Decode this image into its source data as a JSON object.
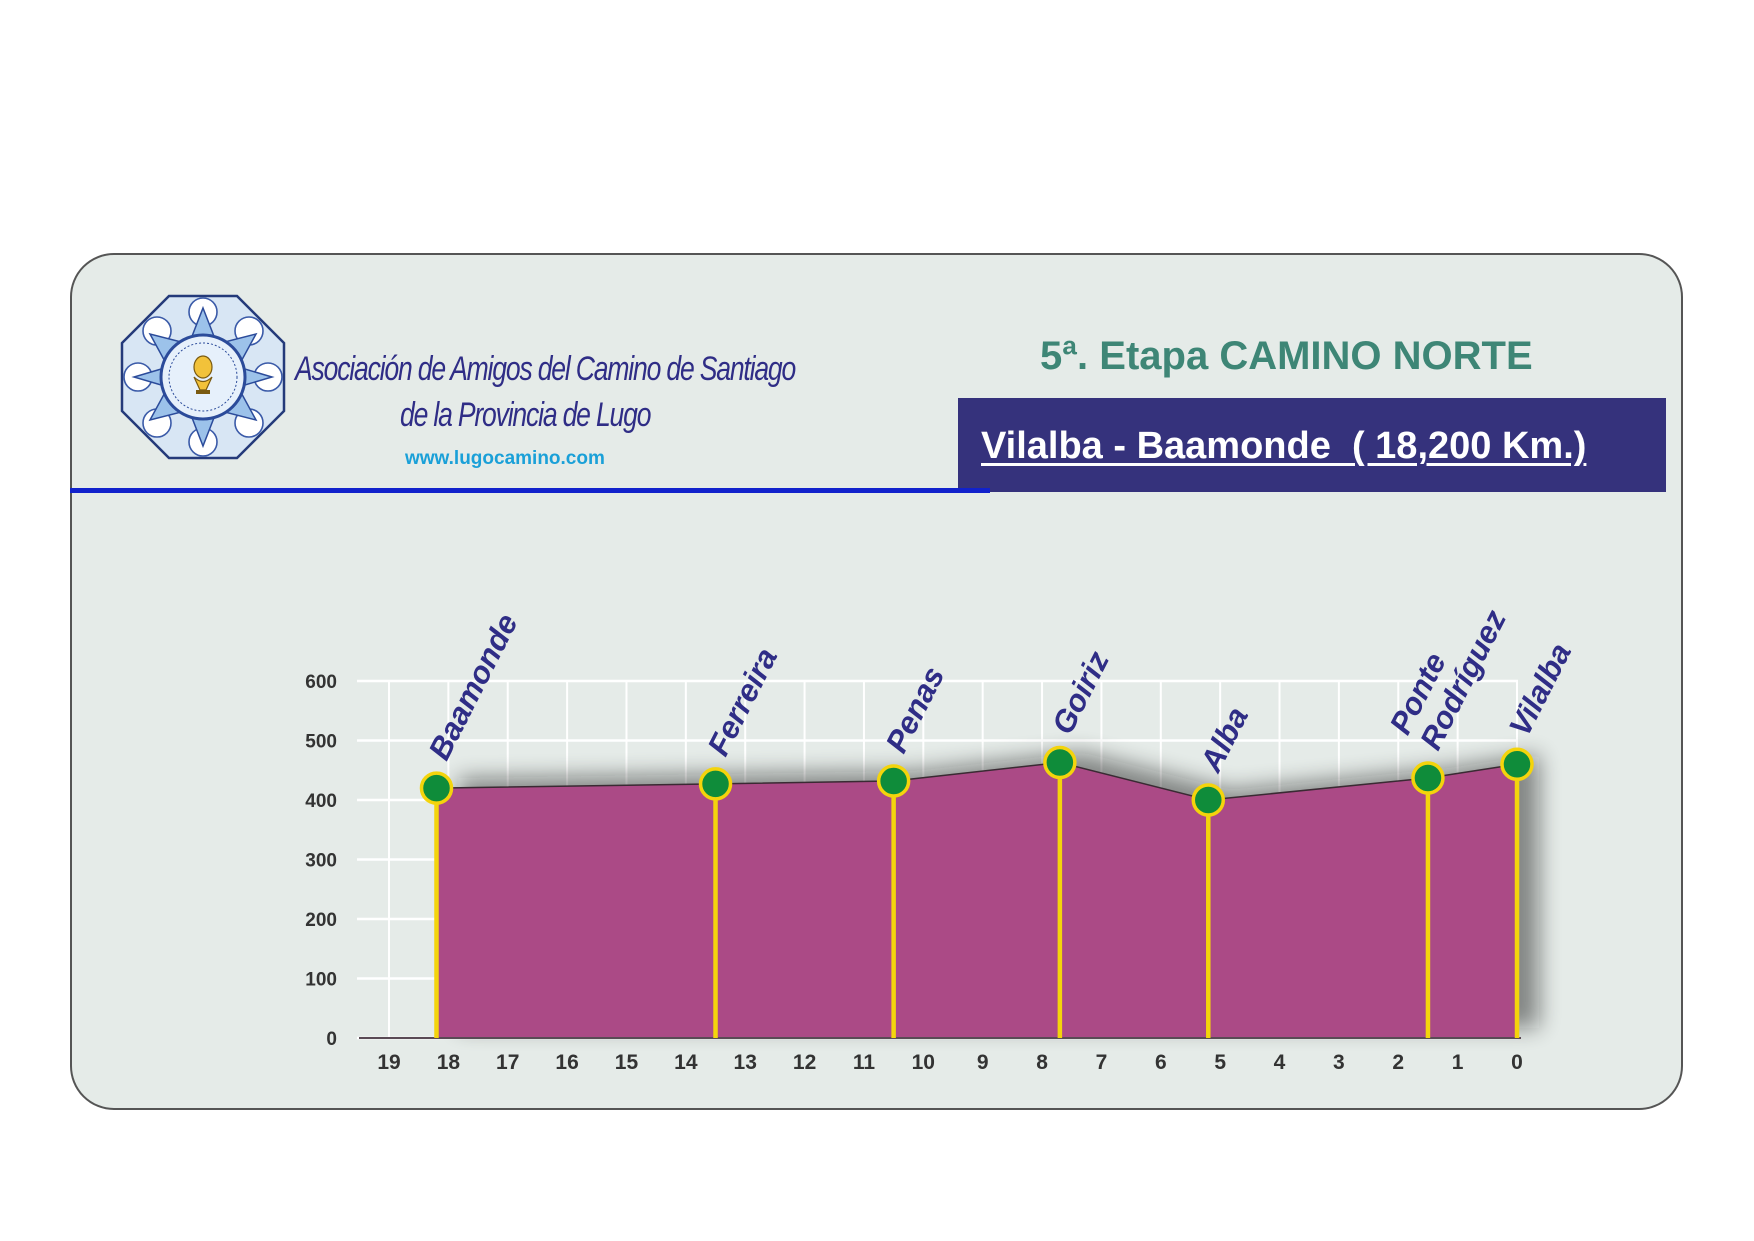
{
  "header": {
    "org_line1": "Asociación de Amigos del Camino de Santiago",
    "org_line2": "de la Provincia de Lugo",
    "website": "www.lugocamino.com",
    "stage_title": "5ª. Etapa CAMINO NORTE",
    "route": "Vilalba - Baamonde  ( 18,200 Km.)"
  },
  "colors": {
    "card_background": "#e5ebe8",
    "title_green": "#3e8676",
    "route_box": "#35327c",
    "header_rule": "#1122cc",
    "profile_fill": "#ab4a86",
    "marker_line": "#f4d40c",
    "marker_dot": "#0f8c3a",
    "place_label": "#2f2d86"
  },
  "chart_data": {
    "type": "area",
    "title": "",
    "xlabel": "",
    "ylabel": "",
    "x_reversed": true,
    "xlim": [
      19,
      0
    ],
    "ylim": [
      0,
      600
    ],
    "grid": true,
    "x_ticks": [
      19,
      18,
      17,
      16,
      15,
      14,
      13,
      12,
      11,
      10,
      9,
      8,
      7,
      6,
      5,
      4,
      3,
      2,
      1,
      0
    ],
    "y_ticks": [
      0,
      100,
      200,
      300,
      400,
      500,
      600
    ],
    "profile": [
      {
        "x": 18.2,
        "y": 420
      },
      {
        "x": 13.5,
        "y": 427
      },
      {
        "x": 10.5,
        "y": 432
      },
      {
        "x": 7.7,
        "y": 463
      },
      {
        "x": 5.2,
        "y": 400
      },
      {
        "x": 1.5,
        "y": 437
      },
      {
        "x": 0,
        "y": 460
      }
    ],
    "places": [
      {
        "name": "Baamonde",
        "x": 18.2,
        "y": 420
      },
      {
        "name": "Ferreira",
        "x": 13.5,
        "y": 427
      },
      {
        "name": "Penas",
        "x": 10.5,
        "y": 432
      },
      {
        "name": "Goiriz",
        "x": 7.7,
        "y": 463
      },
      {
        "name": "Alba",
        "x": 5.2,
        "y": 400
      },
      {
        "name": "Ponte Rodríguez",
        "x": 1.5,
        "y": 437
      },
      {
        "name": "Vilalba",
        "x": 0,
        "y": 460
      }
    ]
  }
}
